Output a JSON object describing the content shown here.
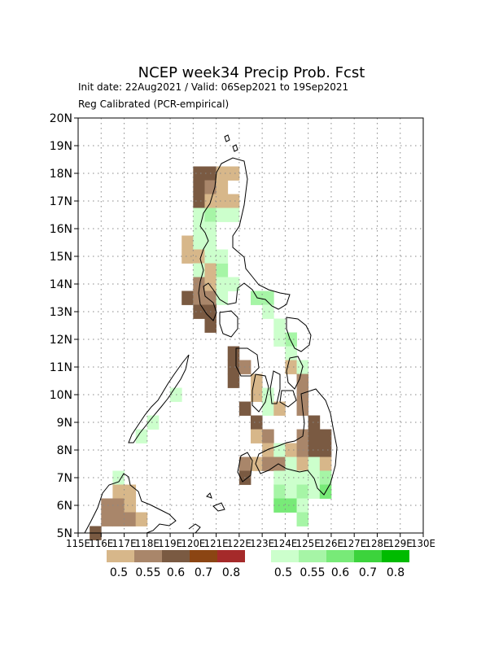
{
  "title": "NCEP  week34  Precip  Prob.  Fcst",
  "subtitle_dates": "Init date: 22Aug2021 / Valid: 06Sep2021 to 19Sep2021",
  "subtitle_method": "Reg Calibrated (PCR-empirical)",
  "lat_labels": [
    "20N",
    "19N",
    "18N",
    "17N",
    "16N",
    "15N",
    "14N",
    "13N",
    "12N",
    "11N",
    "10N",
    "9N",
    "8N",
    "7N",
    "6N",
    "5N"
  ],
  "lon_labels": [
    "115E",
    "116E",
    "117E",
    "118E",
    "119E",
    "120E",
    "121E",
    "122E",
    "123E",
    "124E",
    "125E",
    "126E",
    "127E",
    "128E",
    "129E",
    "130E"
  ],
  "legend": {
    "dry": {
      "labels": [
        "0.5",
        "0.55",
        "0.6",
        "0.7",
        "0.8"
      ],
      "colors": [
        "#d7b78a",
        "#a9866a",
        "#7a5a42",
        "#8b4513",
        "#a52a2a"
      ]
    },
    "wet": {
      "labels": [
        "0.5",
        "0.55",
        "0.6",
        "0.7",
        "0.8"
      ],
      "colors": [
        "#ccffcc",
        "#a6f5a6",
        "#78ea78",
        "#3cd33c",
        "#00bb00"
      ]
    }
  },
  "map_extent": {
    "lon_range": [
      115,
      130
    ],
    "lat_range": [
      5,
      20
    ]
  },
  "grid": "dotted",
  "chart_data": {
    "type": "heatmap",
    "title": "NCEP  week34  Precip  Prob.  Fcst",
    "cell_size_deg": 0.5,
    "category_colors": {
      "dry_0.5": "#d7b78a",
      "dry_0.55": "#a9866a",
      "dry_0.6": "#7a5a42",
      "wet_0.5": "#ccffcc",
      "wet_0.55": "#a6f5a6",
      "wet_0.6": "#78ea78"
    },
    "cells": [
      {
        "lon": 120.25,
        "lat": 18.0,
        "c": "dry_0.6"
      },
      {
        "lon": 120.75,
        "lat": 18.0,
        "c": "dry_0.6"
      },
      {
        "lon": 121.25,
        "lat": 18.0,
        "c": "dry_0.5"
      },
      {
        "lon": 121.75,
        "lat": 18.0,
        "c": "dry_0.5"
      },
      {
        "lon": 120.25,
        "lat": 17.5,
        "c": "dry_0.6"
      },
      {
        "lon": 120.75,
        "lat": 17.5,
        "c": "dry_0.55"
      },
      {
        "lon": 121.25,
        "lat": 17.5,
        "c": "dry_0.5"
      },
      {
        "lon": 120.25,
        "lat": 17.0,
        "c": "dry_0.6"
      },
      {
        "lon": 120.75,
        "lat": 17.0,
        "c": "dry_0.5"
      },
      {
        "lon": 121.25,
        "lat": 17.0,
        "c": "dry_0.5"
      },
      {
        "lon": 121.75,
        "lat": 17.0,
        "c": "dry_0.5"
      },
      {
        "lon": 120.25,
        "lat": 16.5,
        "c": "wet_0.5"
      },
      {
        "lon": 120.75,
        "lat": 16.5,
        "c": "wet_0.55"
      },
      {
        "lon": 121.25,
        "lat": 16.5,
        "c": "wet_0.5"
      },
      {
        "lon": 121.75,
        "lat": 16.5,
        "c": "wet_0.5"
      },
      {
        "lon": 120.25,
        "lat": 16.0,
        "c": "wet_0.5"
      },
      {
        "lon": 120.75,
        "lat": 16.0,
        "c": "wet_0.5"
      },
      {
        "lon": 119.75,
        "lat": 15.5,
        "c": "dry_0.5"
      },
      {
        "lon": 120.25,
        "lat": 15.5,
        "c": "wet_0.5"
      },
      {
        "lon": 120.75,
        "lat": 15.5,
        "c": "wet_0.5"
      },
      {
        "lon": 119.75,
        "lat": 15.0,
        "c": "dry_0.5"
      },
      {
        "lon": 120.25,
        "lat": 15.0,
        "c": "dry_0.5"
      },
      {
        "lon": 120.75,
        "lat": 15.0,
        "c": "wet_0.5"
      },
      {
        "lon": 120.25,
        "lat": 14.5,
        "c": "wet_0.5"
      },
      {
        "lon": 120.75,
        "lat": 14.5,
        "c": "dry_0.5"
      },
      {
        "lon": 121.25,
        "lat": 14.5,
        "c": "wet_0.55"
      },
      {
        "lon": 120.25,
        "lat": 14.0,
        "c": "dry_0.55"
      },
      {
        "lon": 120.75,
        "lat": 14.0,
        "c": "dry_0.5"
      },
      {
        "lon": 121.25,
        "lat": 14.0,
        "c": "wet_0.5"
      },
      {
        "lon": 121.75,
        "lat": 14.0,
        "c": "wet_0.5"
      },
      {
        "lon": 119.75,
        "lat": 13.5,
        "c": "dry_0.6"
      },
      {
        "lon": 120.25,
        "lat": 13.5,
        "c": "dry_0.55"
      },
      {
        "lon": 120.75,
        "lat": 13.5,
        "c": "dry_0.55"
      },
      {
        "lon": 121.25,
        "lat": 13.5,
        "c": "wet_0.5"
      },
      {
        "lon": 122.75,
        "lat": 13.5,
        "c": "wet_0.55"
      },
      {
        "lon": 123.25,
        "lat": 13.5,
        "c": "wet_0.55"
      },
      {
        "lon": 120.25,
        "lat": 13.0,
        "c": "dry_0.6"
      },
      {
        "lon": 120.75,
        "lat": 13.0,
        "c": "dry_0.6"
      },
      {
        "lon": 123.25,
        "lat": 13.0,
        "c": "wet_0.5"
      },
      {
        "lon": 120.75,
        "lat": 12.5,
        "c": "dry_0.6"
      },
      {
        "lon": 123.75,
        "lat": 12.5,
        "c": "wet_0.5"
      },
      {
        "lon": 124.25,
        "lat": 12.0,
        "c": "wet_0.55"
      },
      {
        "lon": 123.75,
        "lat": 12.0,
        "c": "wet_0.5"
      },
      {
        "lon": 121.75,
        "lat": 11.5,
        "c": "dry_0.6"
      },
      {
        "lon": 124.25,
        "lat": 11.5,
        "c": "wet_0.5"
      },
      {
        "lon": 121.75,
        "lat": 11.0,
        "c": "dry_0.6"
      },
      {
        "lon": 122.25,
        "lat": 11.0,
        "c": "dry_0.55"
      },
      {
        "lon": 124.25,
        "lat": 11.0,
        "c": "dry_0.5"
      },
      {
        "lon": 124.75,
        "lat": 11.0,
        "c": "wet_0.5"
      },
      {
        "lon": 121.75,
        "lat": 10.5,
        "c": "dry_0.6"
      },
      {
        "lon": 122.75,
        "lat": 10.5,
        "c": "dry_0.5"
      },
      {
        "lon": 124.75,
        "lat": 10.5,
        "c": "dry_0.55"
      },
      {
        "lon": 122.75,
        "lat": 10.0,
        "c": "dry_0.5"
      },
      {
        "lon": 123.25,
        "lat": 10.0,
        "c": "wet_0.5"
      },
      {
        "lon": 124.75,
        "lat": 10.0,
        "c": "dry_0.55"
      },
      {
        "lon": 122.25,
        "lat": 9.5,
        "c": "dry_0.6"
      },
      {
        "lon": 123.25,
        "lat": 9.5,
        "c": "wet_0.5"
      },
      {
        "lon": 123.75,
        "lat": 9.5,
        "c": "dry_0.5"
      },
      {
        "lon": 124.75,
        "lat": 9.5,
        "c": "dry_0.55"
      },
      {
        "lon": 122.75,
        "lat": 9.0,
        "c": "dry_0.6"
      },
      {
        "lon": 125.25,
        "lat": 9.0,
        "c": "dry_0.6"
      },
      {
        "lon": 122.75,
        "lat": 8.5,
        "c": "dry_0.5"
      },
      {
        "lon": 123.25,
        "lat": 8.5,
        "c": "dry_0.55"
      },
      {
        "lon": 124.75,
        "lat": 8.5,
        "c": "dry_0.55"
      },
      {
        "lon": 125.25,
        "lat": 8.5,
        "c": "dry_0.6"
      },
      {
        "lon": 125.75,
        "lat": 8.5,
        "c": "dry_0.6"
      },
      {
        "lon": 123.25,
        "lat": 8.0,
        "c": "dry_0.5"
      },
      {
        "lon": 123.75,
        "lat": 8.0,
        "c": "wet_0.5"
      },
      {
        "lon": 124.25,
        "lat": 8.0,
        "c": "dry_0.5"
      },
      {
        "lon": 124.75,
        "lat": 8.0,
        "c": "dry_0.55"
      },
      {
        "lon": 125.25,
        "lat": 8.0,
        "c": "dry_0.6"
      },
      {
        "lon": 125.75,
        "lat": 8.0,
        "c": "dry_0.6"
      },
      {
        "lon": 122.25,
        "lat": 7.5,
        "c": "dry_0.55"
      },
      {
        "lon": 122.75,
        "lat": 7.5,
        "c": "dry_0.5"
      },
      {
        "lon": 123.25,
        "lat": 7.5,
        "c": "dry_0.55"
      },
      {
        "lon": 123.75,
        "lat": 7.5,
        "c": "dry_0.55"
      },
      {
        "lon": 124.25,
        "lat": 7.5,
        "c": "wet_0.5"
      },
      {
        "lon": 124.75,
        "lat": 7.5,
        "c": "dry_0.5"
      },
      {
        "lon": 125.25,
        "lat": 7.5,
        "c": "wet_0.5"
      },
      {
        "lon": 125.75,
        "lat": 7.5,
        "c": "dry_0.5"
      },
      {
        "lon": 122.25,
        "lat": 7.0,
        "c": "dry_0.6"
      },
      {
        "lon": 123.75,
        "lat": 7.0,
        "c": "wet_0.5"
      },
      {
        "lon": 124.25,
        "lat": 7.0,
        "c": "wet_0.5"
      },
      {
        "lon": 124.75,
        "lat": 7.0,
        "c": "wet_0.5"
      },
      {
        "lon": 125.25,
        "lat": 7.0,
        "c": "wet_0.5"
      },
      {
        "lon": 125.75,
        "lat": 7.0,
        "c": "wet_0.55"
      },
      {
        "lon": 123.75,
        "lat": 6.5,
        "c": "wet_0.55"
      },
      {
        "lon": 124.25,
        "lat": 6.5,
        "c": "wet_0.5"
      },
      {
        "lon": 124.75,
        "lat": 6.5,
        "c": "wet_0.55"
      },
      {
        "lon": 125.25,
        "lat": 6.5,
        "c": "wet_0.5"
      },
      {
        "lon": 125.75,
        "lat": 6.5,
        "c": "wet_0.6"
      },
      {
        "lon": 123.75,
        "lat": 6.0,
        "c": "wet_0.6"
      },
      {
        "lon": 124.25,
        "lat": 6.0,
        "c": "wet_0.6"
      },
      {
        "lon": 124.75,
        "lat": 6.0,
        "c": "wet_0.5"
      },
      {
        "lon": 124.75,
        "lat": 5.5,
        "c": "wet_0.55"
      },
      {
        "lon": 116.75,
        "lat": 7.0,
        "c": "wet_0.5"
      },
      {
        "lon": 116.75,
        "lat": 6.5,
        "c": "dry_0.5"
      },
      {
        "lon": 117.25,
        "lat": 6.5,
        "c": "dry_0.5"
      },
      {
        "lon": 116.25,
        "lat": 6.0,
        "c": "dry_0.55"
      },
      {
        "lon": 116.75,
        "lat": 6.0,
        "c": "dry_0.55"
      },
      {
        "lon": 117.25,
        "lat": 6.0,
        "c": "dry_0.5"
      },
      {
        "lon": 116.25,
        "lat": 5.5,
        "c": "dry_0.55"
      },
      {
        "lon": 116.75,
        "lat": 5.5,
        "c": "dry_0.55"
      },
      {
        "lon": 117.25,
        "lat": 5.5,
        "c": "dry_0.55"
      },
      {
        "lon": 117.75,
        "lat": 5.5,
        "c": "dry_0.5"
      },
      {
        "lon": 115.75,
        "lat": 5.0,
        "c": "dry_0.6"
      },
      {
        "lon": 118.25,
        "lat": 9.0,
        "c": "wet_0.5"
      },
      {
        "lon": 117.75,
        "lat": 8.5,
        "c": "wet_0.5"
      },
      {
        "lon": 119.25,
        "lat": 10.0,
        "c": "wet_0.5"
      },
      {
        "lon": 120.75,
        "lat": 16.0,
        "c": "wet_0.5"
      },
      {
        "lon": 121.25,
        "lat": 15.0,
        "c": "wet_0.5"
      }
    ]
  }
}
